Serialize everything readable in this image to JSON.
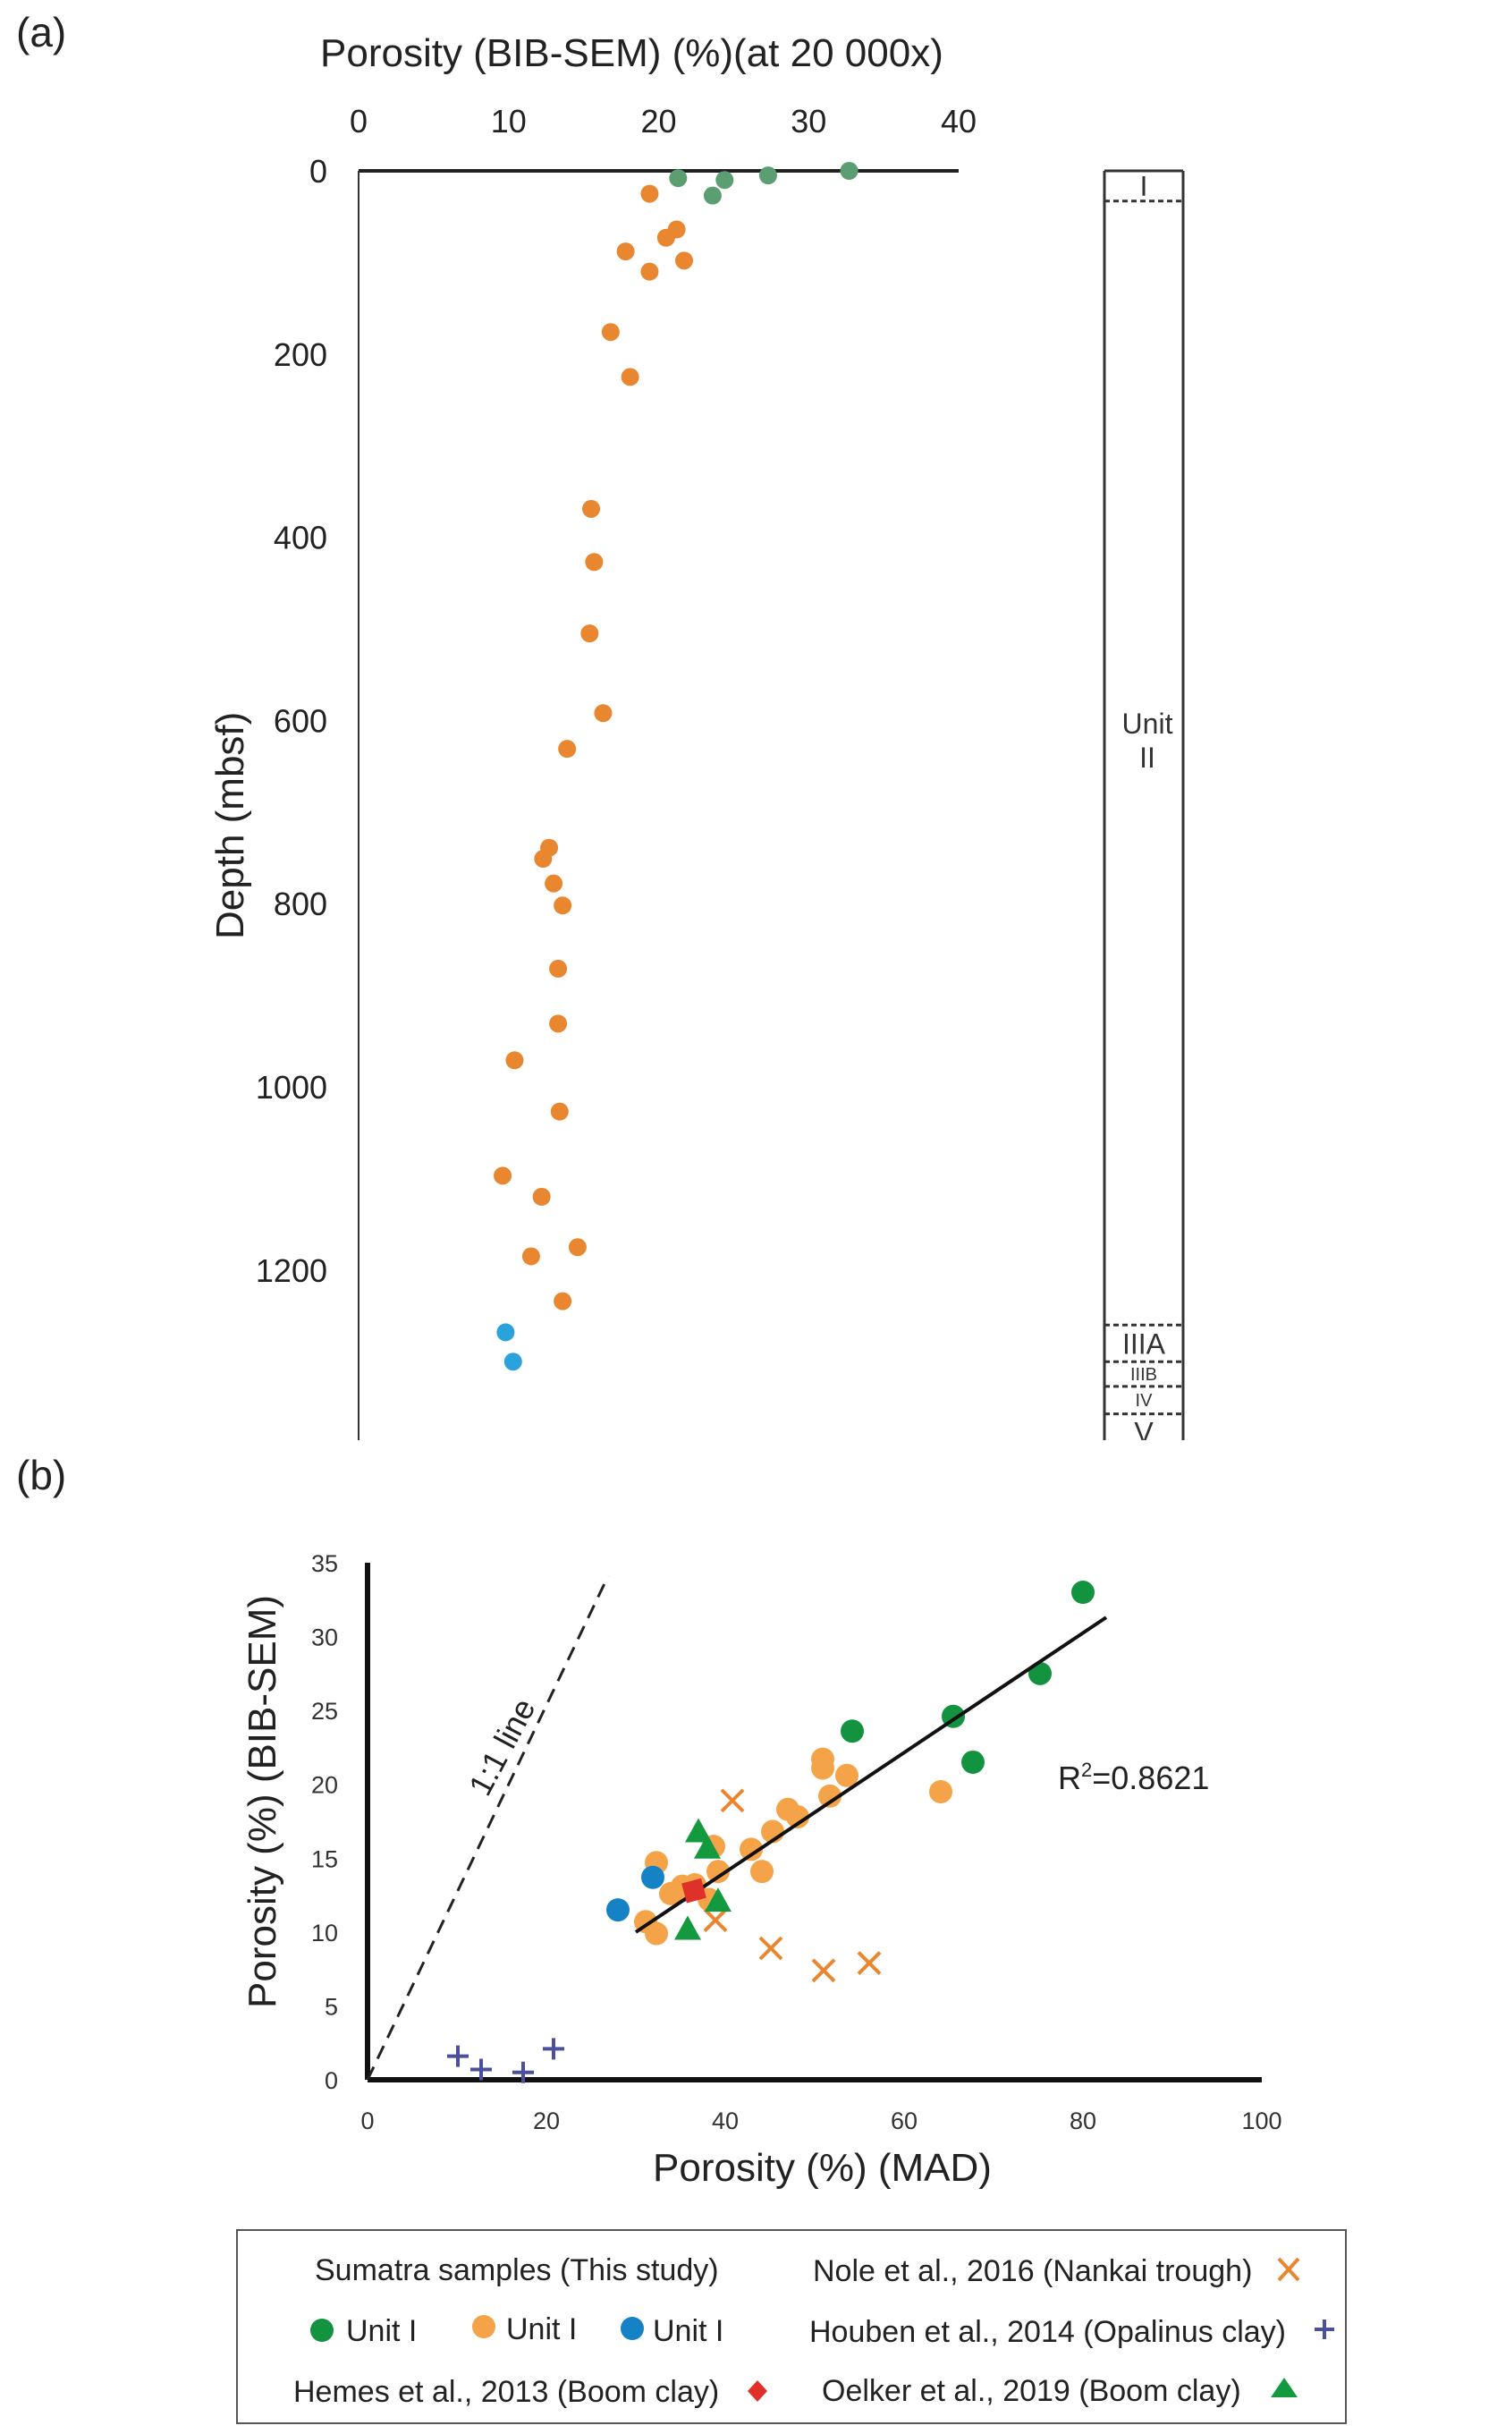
{
  "chart_data": [
    {
      "panel": "(a)",
      "type": "scatter",
      "title": "Porosity (BIB-SEM) (%)(at 20 000x)",
      "xlabel": "Porosity (BIB-SEM) (%)(at 20 000x)",
      "ylabel": "Depth (mbsf)",
      "x_axis_position": "top",
      "y_inverted": true,
      "xlim": [
        0,
        40
      ],
      "ylim": [
        0,
        1400
      ],
      "x_ticks": [
        "0",
        "10",
        "20",
        "30",
        "40"
      ],
      "y_ticks": [
        "0",
        "200",
        "400",
        "600",
        "800",
        "1000",
        "1200"
      ],
      "grid": false,
      "series": [
        {
          "name": "Unit I",
          "color": "#5a9e72",
          "points": [
            [
              21.3,
              8
            ],
            [
              24.4,
              10
            ],
            [
              23.6,
              27
            ],
            [
              27.3,
              5
            ],
            [
              32.7,
              0
            ]
          ]
        },
        {
          "name": "Unit II",
          "color": "#e8872f",
          "points": [
            [
              19.4,
              25
            ],
            [
              21.2,
              64
            ],
            [
              20.5,
              73
            ],
            [
              17.8,
              88
            ],
            [
              21.7,
              98
            ],
            [
              19.4,
              110
            ],
            [
              16.8,
              176
            ],
            [
              18.1,
              225
            ],
            [
              15.5,
              369
            ],
            [
              15.7,
              427
            ],
            [
              15.4,
              505
            ],
            [
              16.3,
              592
            ],
            [
              13.9,
              631
            ],
            [
              12.7,
              739
            ],
            [
              12.3,
              751
            ],
            [
              13.0,
              778
            ],
            [
              13.6,
              802
            ],
            [
              13.3,
              871
            ],
            [
              13.3,
              931
            ],
            [
              10.4,
              971
            ],
            [
              13.4,
              1027
            ],
            [
              9.6,
              1097
            ],
            [
              12.2,
              1120
            ],
            [
              14.6,
              1175
            ],
            [
              11.5,
              1185
            ],
            [
              13.6,
              1234
            ]
          ]
        },
        {
          "name": "Unit III",
          "color": "#2aa3dc",
          "points": [
            [
              9.8,
              1268
            ],
            [
              10.3,
              1300
            ]
          ]
        }
      ],
      "lithologic_units": [
        {
          "label": "I",
          "top": 0,
          "bottom": 33
        },
        {
          "label": "Unit II",
          "label_line1": "Unit",
          "label_line2": "II",
          "top": 33,
          "bottom": 1260
        },
        {
          "label": "IIIA",
          "top": 1260,
          "bottom": 1300
        },
        {
          "label": "IIIB",
          "top": 1300,
          "bottom": 1327
        },
        {
          "label": "IV",
          "top": 1327,
          "bottom": 1357
        },
        {
          "label": "V",
          "top": 1357,
          "bottom": 1400
        }
      ]
    },
    {
      "panel": "(b)",
      "type": "scatter",
      "title": "",
      "xlabel": "Porosity (%) (MAD)",
      "ylabel": "Porosity (%) (BIB-SEM)",
      "xlim": [
        0,
        100
      ],
      "ylim": [
        0,
        35
      ],
      "x_ticks": [
        "0",
        "20",
        "40",
        "60",
        "80",
        "100"
      ],
      "y_ticks": [
        "0",
        "5",
        "10",
        "15",
        "20",
        "25",
        "30",
        "35"
      ],
      "grid": false,
      "legend_position": "bottom",
      "annotations": {
        "r_squared_prefix": "R",
        "r_squared_sup": "2",
        "r_squared_value": "=0.8621",
        "one_to_one_label": "1:1 line"
      },
      "regression_line": {
        "x": [
          30,
          82.6
        ],
        "y": [
          10.0,
          31.3
        ],
        "color": "#111111"
      },
      "one_to_one_line": {
        "x": [
          0,
          26.9
        ],
        "y": [
          0,
          34.1
        ],
        "style": "dashed"
      },
      "series": [
        {
          "name": "Unit I",
          "group": "Sumatra samples (This study)",
          "marker": "circle",
          "color": "#13933f",
          "points": [
            [
              80.0,
              33.0
            ],
            [
              75.2,
              27.5
            ],
            [
              65.5,
              24.6
            ],
            [
              67.7,
              21.5
            ],
            [
              54.2,
              23.6
            ]
          ]
        },
        {
          "name": "Unit I",
          "group": "Sumatra samples (This study)",
          "marker": "circle",
          "color": "#f4a349",
          "points": [
            [
              50.9,
              21.7
            ],
            [
              50.9,
              21.1
            ],
            [
              53.6,
              20.6
            ],
            [
              51.7,
              19.2
            ],
            [
              64.1,
              19.5
            ],
            [
              47.0,
              18.3
            ],
            [
              48.1,
              17.8
            ],
            [
              45.3,
              16.8
            ],
            [
              42.9,
              15.6
            ],
            [
              38.7,
              15.8
            ],
            [
              32.3,
              14.7
            ],
            [
              44.1,
              14.1
            ],
            [
              39.2,
              14.1
            ],
            [
              35.2,
              12.8
            ],
            [
              33.9,
              12.6
            ],
            [
              36.6,
              13.2
            ],
            [
              38.2,
              12.2
            ],
            [
              31.1,
              10.7
            ],
            [
              32.3,
              9.9
            ],
            [
              35.2,
              13.1
            ]
          ]
        },
        {
          "name": "Unit I",
          "group": "Sumatra samples (This study)",
          "marker": "circle",
          "color": "#1482c4",
          "points": [
            [
              28.0,
              11.5
            ],
            [
              31.9,
              13.7
            ]
          ]
        },
        {
          "name": "Nole et al., 2016 (Nankai trough)",
          "marker": "x",
          "color": "#e8872f",
          "points": [
            [
              40.8,
              18.9
            ],
            [
              38.9,
              10.8
            ],
            [
              45.1,
              8.9
            ],
            [
              51.0,
              7.4
            ],
            [
              56.1,
              7.9
            ]
          ]
        },
        {
          "name": "Houben et al., 2014 (Opalinus clay)",
          "marker": "plus",
          "color": "#4b4f9c",
          "points": [
            [
              10.1,
              1.6
            ],
            [
              12.7,
              0.7
            ],
            [
              17.4,
              0.5
            ],
            [
              20.8,
              2.1
            ]
          ]
        },
        {
          "name": "Hemes et al., 2013 (Boom clay)",
          "marker": "diamond",
          "color": "#e0302a",
          "points": [
            [
              36.5,
              12.8
            ]
          ]
        },
        {
          "name": "Oelker et al., 2019 (Boom clay)",
          "marker": "triangle",
          "color": "#139a3e",
          "points": [
            [
              37.0,
              16.8
            ],
            [
              38.0,
              15.7
            ],
            [
              39.2,
              12.1
            ],
            [
              35.8,
              10.2
            ]
          ]
        }
      ]
    }
  ],
  "labels": {
    "panel_a": "(a)",
    "panel_b": "(b)",
    "a_title": "Porosity (BIB-SEM) (%)(at 20 000x)",
    "a_ylabel": "Depth (mbsf)",
    "b_xlabel": "Porosity (%) (MAD)",
    "b_ylabel": "Porosity (%) (BIB-SEM)"
  },
  "legend": {
    "group_title": "Sumatra samples (This study)",
    "unit_entries": [
      {
        "label": "Unit I",
        "color": "#13933f",
        "marker": "circle"
      },
      {
        "label": "Unit I",
        "color": "#f4a349",
        "marker": "circle"
      },
      {
        "label": "Unit I",
        "color": "#1482c4",
        "marker": "circle"
      }
    ],
    "hemes": {
      "label": "Hemes et al., 2013 (Boom clay)",
      "color": "#e0302a",
      "marker": "diamond"
    },
    "nole": {
      "label": "Nole et al., 2016 (Nankai trough)",
      "color": "#e8872f",
      "marker": "x"
    },
    "houben": {
      "label": "Houben et al., 2014 (Opalinus clay)",
      "color": "#4b4f9c",
      "marker": "plus"
    },
    "oelker": {
      "label": "Oelker et al., 2019 (Boom clay)",
      "color": "#139a3e",
      "marker": "triangle"
    }
  }
}
